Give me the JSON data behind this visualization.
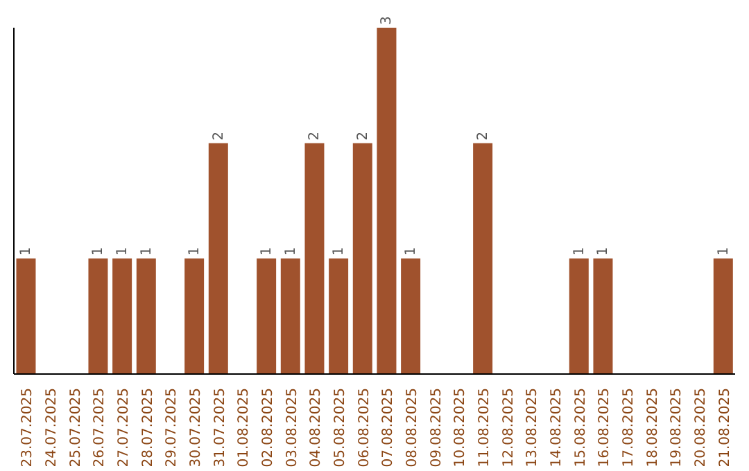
{
  "chart_data": {
    "type": "bar",
    "categories": [
      "23.07.2025",
      "24.07.2025",
      "25.07.2025",
      "26.07.2025",
      "27.07.2025",
      "28.07.2025",
      "29.07.2025",
      "30.07.2025",
      "31.07.2025",
      "01.08.2025",
      "02.08.2025",
      "03.08.2025",
      "04.08.2025",
      "05.08.2025",
      "06.08.2025",
      "07.08.2025",
      "08.08.2025",
      "09.08.2025",
      "10.08.2025",
      "11.08.2025",
      "12.08.2025",
      "13.08.2025",
      "14.08.2025",
      "15.08.2025",
      "16.08.2025",
      "17.08.2025",
      "18.08.2025",
      "19.08.2025",
      "20.08.2025",
      "21.08.2025"
    ],
    "values": [
      1,
      0,
      0,
      1,
      1,
      1,
      0,
      1,
      2,
      0,
      1,
      1,
      2,
      1,
      2,
      3,
      1,
      0,
      0,
      2,
      0,
      0,
      0,
      1,
      1,
      0,
      0,
      0,
      0,
      1
    ],
    "value_labels": [
      "1",
      null,
      null,
      "1",
      "1",
      "1",
      null,
      "1",
      "2",
      null,
      "1",
      "1",
      "2",
      "1",
      "2",
      "3",
      "1",
      null,
      null,
      "2",
      null,
      null,
      null,
      "1",
      "1",
      null,
      null,
      null,
      null,
      "1"
    ],
    "color": "#a0522d",
    "ylim": [
      0,
      3
    ],
    "tick_labels": "x",
    "grid": false
  }
}
